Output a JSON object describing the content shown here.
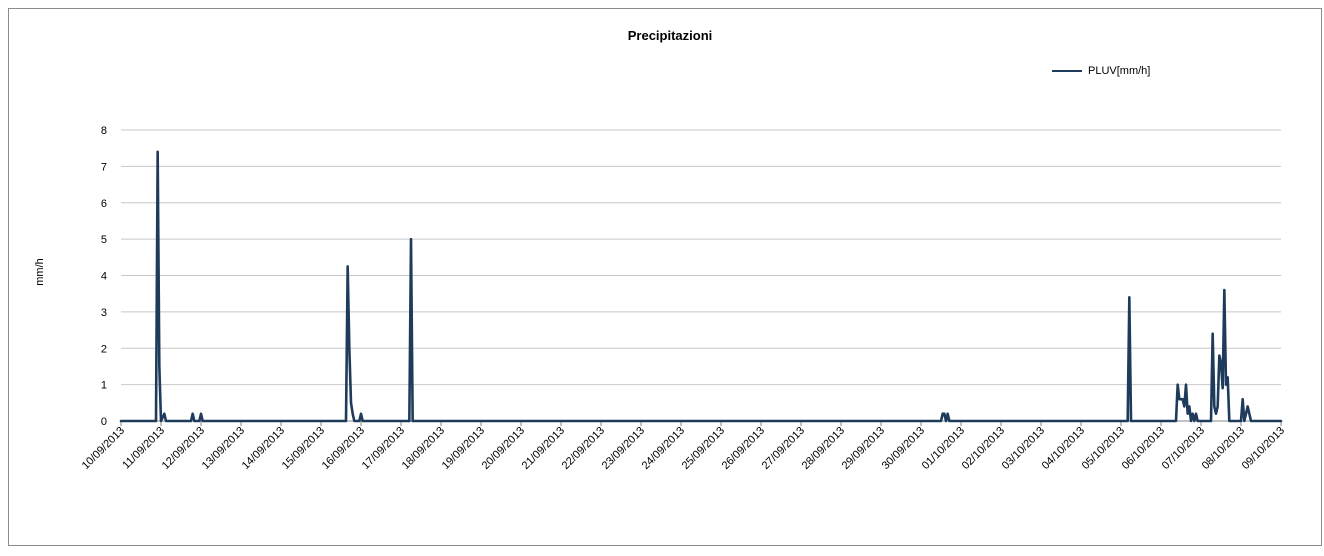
{
  "chart_data": {
    "type": "line",
    "title": "Precipitazioni",
    "ylabel": "mm/h",
    "xlabel": "",
    "ylim": [
      0,
      8
    ],
    "yticks": [
      0,
      1,
      2,
      3,
      4,
      5,
      6,
      7,
      8
    ],
    "xlim": [
      "10/09/2013",
      "09/10/2013"
    ],
    "x_tick_labels": [
      "10/09/2013",
      "11/09/2013",
      "12/09/2013",
      "13/09/2013",
      "14/09/2013",
      "15/09/2013",
      "16/09/2013",
      "17/09/2013",
      "18/09/2013",
      "19/09/2013",
      "20/09/2013",
      "21/09/2013",
      "22/09/2013",
      "23/09/2013",
      "24/09/2013",
      "25/09/2013",
      "26/09/2013",
      "27/09/2013",
      "28/09/2013",
      "29/09/2013",
      "30/09/2013",
      "01/10/2013",
      "02/10/2013",
      "03/10/2013",
      "04/10/2013",
      "05/10/2013",
      "06/10/2013",
      "07/10/2013",
      "08/10/2013",
      "09/10/2013"
    ],
    "grid": true,
    "legend_position": "top-right",
    "series": [
      {
        "name": "PLUV[mm/h]",
        "color": "#1f3b5c",
        "points": [
          [
            "10/09/2013 00:00",
            0
          ],
          [
            "10/09/2013 21:00",
            0
          ],
          [
            "10/09/2013 22:00",
            7.4
          ],
          [
            "10/09/2013 23:00",
            1.5
          ],
          [
            "11/09/2013 00:00",
            0
          ],
          [
            "11/09/2013 02:00",
            0.2
          ],
          [
            "11/09/2013 03:00",
            0
          ],
          [
            "11/09/2013 18:00",
            0
          ],
          [
            "11/09/2013 19:00",
            0.2
          ],
          [
            "11/09/2013 20:00",
            0
          ],
          [
            "11/09/2013 23:00",
            0
          ],
          [
            "12/09/2013 00:00",
            0.2
          ],
          [
            "12/09/2013 01:00",
            0
          ],
          [
            "15/09/2013 15:00",
            0
          ],
          [
            "15/09/2013 16:00",
            4.25
          ],
          [
            "15/09/2013 17:00",
            2.0
          ],
          [
            "15/09/2013 18:00",
            0.5
          ],
          [
            "15/09/2013 19:00",
            0.2
          ],
          [
            "15/09/2013 20:00",
            0
          ],
          [
            "15/09/2013 23:00",
            0
          ],
          [
            "16/09/2013 00:00",
            0.2
          ],
          [
            "16/09/2013 01:00",
            0
          ],
          [
            "17/09/2013 05:00",
            0
          ],
          [
            "17/09/2013 06:00",
            5.0
          ],
          [
            "17/09/2013 07:00",
            0
          ],
          [
            "30/09/2013 12:00",
            0
          ],
          [
            "30/09/2013 13:00",
            0.2
          ],
          [
            "30/09/2013 14:00",
            0.2
          ],
          [
            "30/09/2013 15:00",
            0
          ],
          [
            "30/09/2013 16:00",
            0.2
          ],
          [
            "30/09/2013 17:00",
            0
          ],
          [
            "05/10/2013 04:00",
            0
          ],
          [
            "05/10/2013 05:00",
            3.4
          ],
          [
            "05/10/2013 06:00",
            0
          ],
          [
            "06/10/2013 09:00",
            0
          ],
          [
            "06/10/2013 10:00",
            1.0
          ],
          [
            "06/10/2013 11:00",
            0.6
          ],
          [
            "06/10/2013 12:00",
            0.6
          ],
          [
            "06/10/2013 13:00",
            0.6
          ],
          [
            "06/10/2013 14:00",
            0.4
          ],
          [
            "06/10/2013 15:00",
            1.0
          ],
          [
            "06/10/2013 16:00",
            0.2
          ],
          [
            "06/10/2013 17:00",
            0.4
          ],
          [
            "06/10/2013 18:00",
            0
          ],
          [
            "06/10/2013 19:00",
            0.2
          ],
          [
            "06/10/2013 20:00",
            0
          ],
          [
            "06/10/2013 21:00",
            0.2
          ],
          [
            "06/10/2013 22:00",
            0
          ],
          [
            "07/10/2013 06:00",
            0
          ],
          [
            "07/10/2013 07:00",
            2.4
          ],
          [
            "07/10/2013 08:00",
            0.4
          ],
          [
            "07/10/2013 09:00",
            0.2
          ],
          [
            "07/10/2013 10:00",
            0.4
          ],
          [
            "07/10/2013 11:00",
            1.8
          ],
          [
            "07/10/2013 12:00",
            1.6
          ],
          [
            "07/10/2013 13:00",
            0.9
          ],
          [
            "07/10/2013 14:00",
            3.6
          ],
          [
            "07/10/2013 15:00",
            1.0
          ],
          [
            "07/10/2013 16:00",
            1.2
          ],
          [
            "07/10/2013 17:00",
            0
          ],
          [
            "08/10/2013 00:00",
            0
          ],
          [
            "08/10/2013 01:00",
            0.6
          ],
          [
            "08/10/2013 02:00",
            0
          ],
          [
            "08/10/2013 03:00",
            0.2
          ],
          [
            "08/10/2013 04:00",
            0.4
          ],
          [
            "08/10/2013 05:00",
            0.2
          ],
          [
            "08/10/2013 06:00",
            0
          ],
          [
            "09/10/2013 00:00",
            0
          ]
        ]
      }
    ]
  }
}
